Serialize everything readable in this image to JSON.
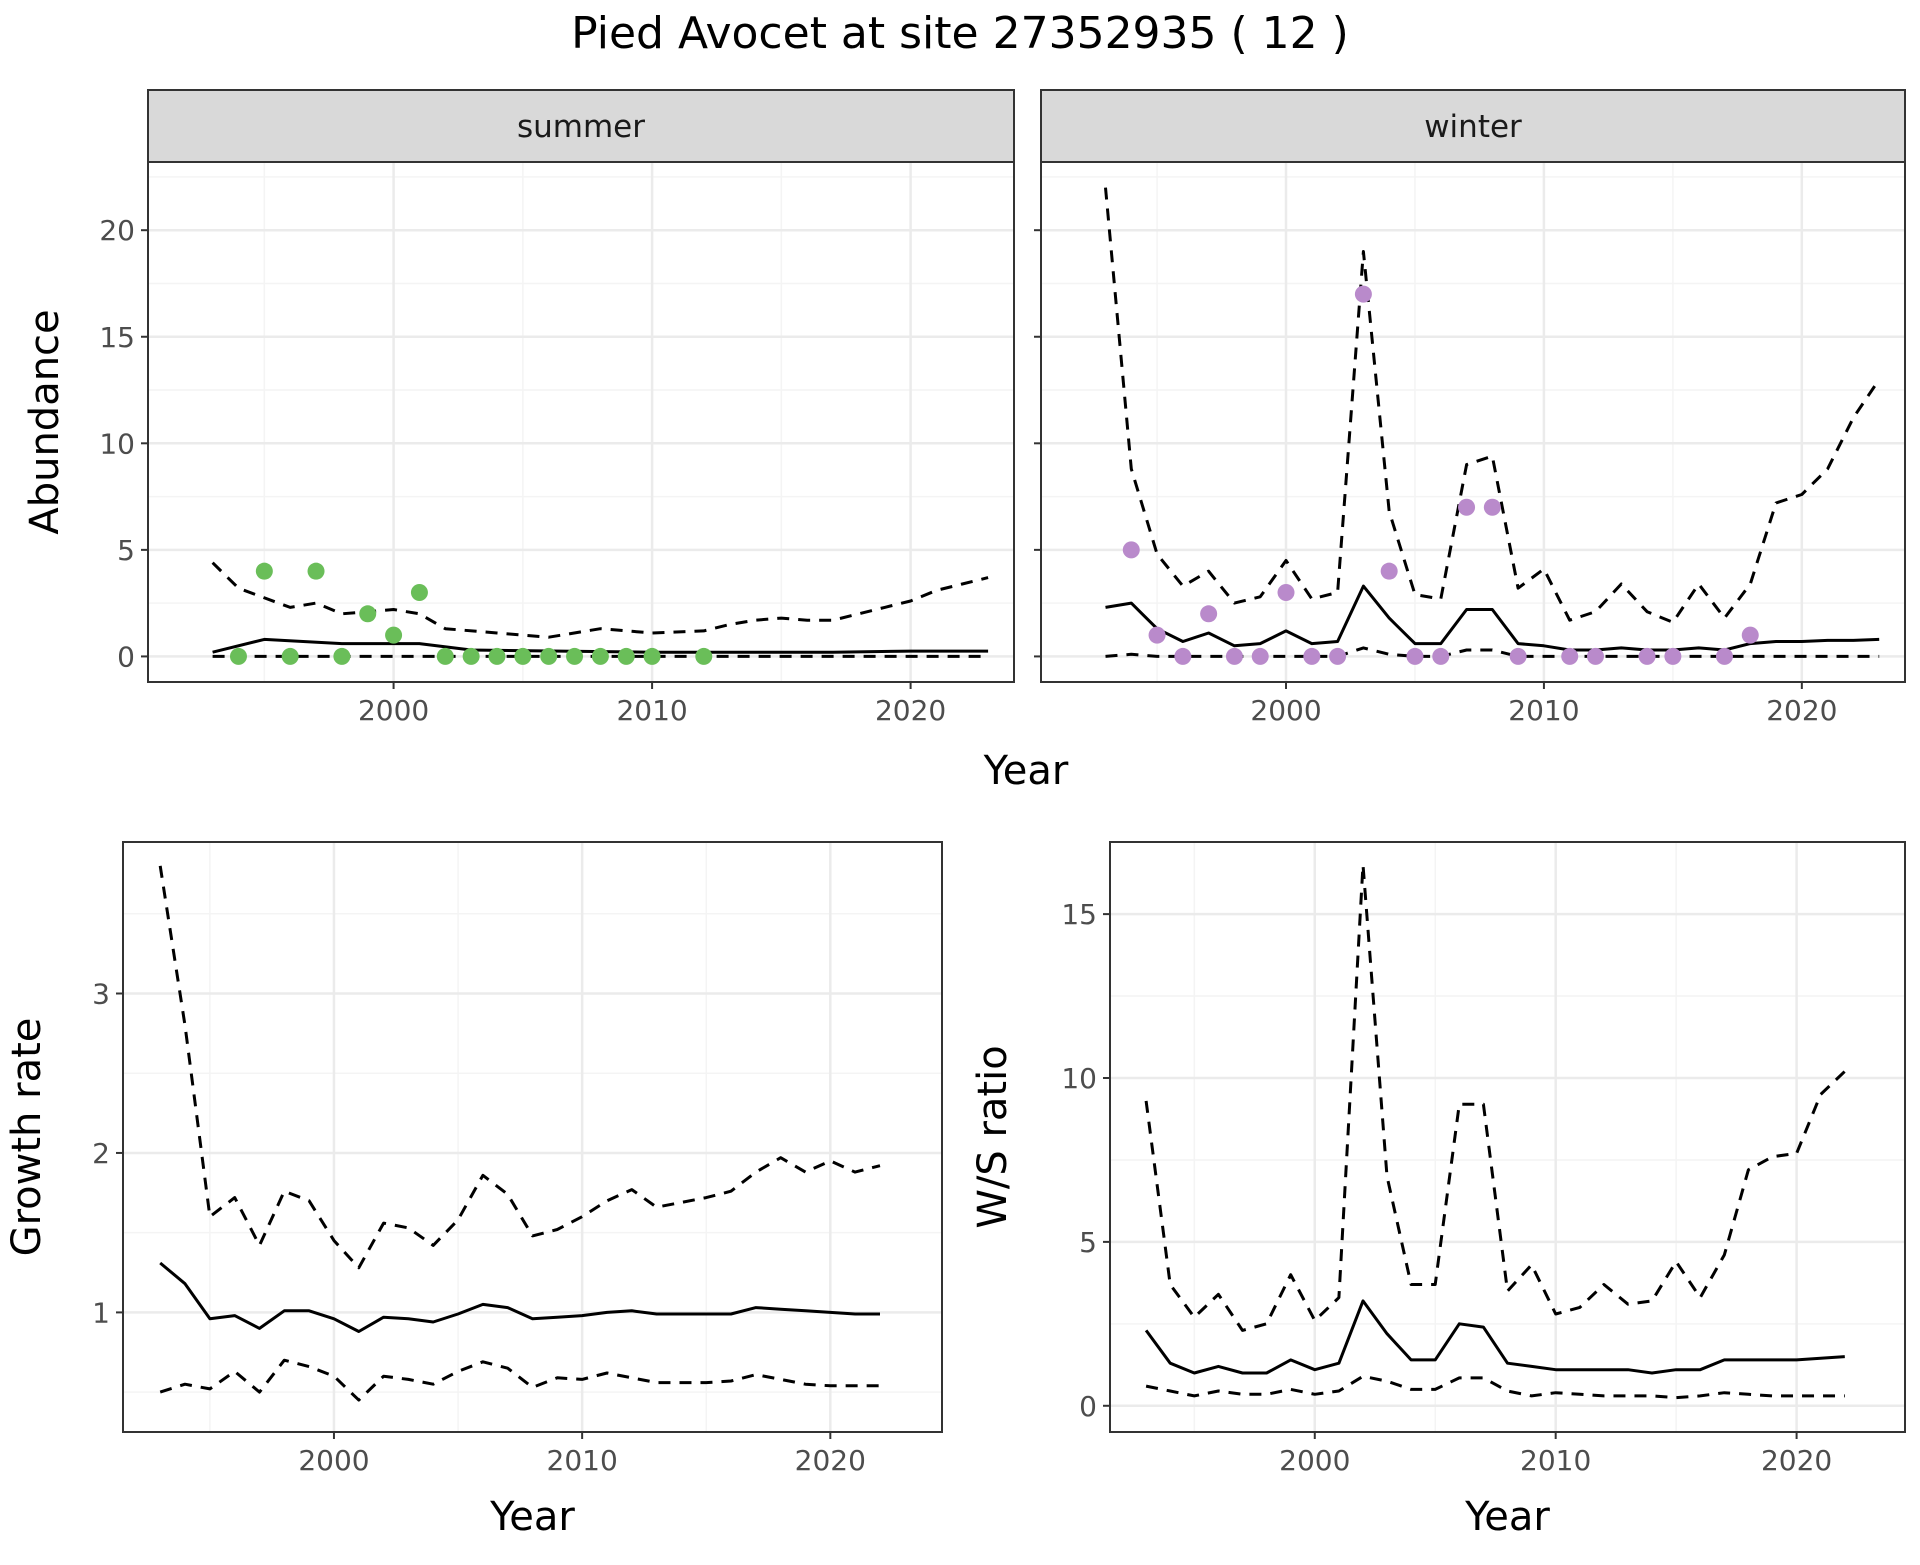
{
  "title": "Pied Avocet at site 27352935 ( 12 )",
  "colors": {
    "summer_points": "#6ABE59",
    "winter_points": "#B98ACB",
    "lines": "#000000",
    "grid_major": "#EBEBEB",
    "grid_minor": "#F4F4F4",
    "strip_fill": "#D9D9D9",
    "panel_border": "#333333"
  },
  "chart_data": [
    {
      "type": "line",
      "panel": "summer",
      "strip_label": "summer",
      "xlabel": "Year",
      "ylabel": "Abundance",
      "xlim": [
        1990.5,
        2024
      ],
      "ylim": [
        -1.2,
        23.2
      ],
      "xticks": [
        2000,
        2010,
        2020
      ],
      "yticks": [
        0,
        5,
        10,
        15,
        20
      ],
      "grid": true,
      "points": {
        "x": [
          1994,
          1995,
          1996,
          1997,
          1998,
          1999,
          2000,
          2001,
          2002,
          2003,
          2004,
          2005,
          2006,
          2007,
          2008,
          2009,
          2010,
          2012
        ],
        "y": [
          0,
          4,
          0,
          4,
          0,
          2,
          1,
          3,
          0,
          0,
          0,
          0,
          0,
          0,
          0,
          0,
          0,
          0
        ]
      },
      "series": [
        {
          "style": "solid",
          "x": [
            1993,
            1995,
            1998,
            2001,
            2003,
            2010,
            2017,
            2020,
            2023
          ],
          "y": [
            0.2,
            0.8,
            0.6,
            0.6,
            0.3,
            0.2,
            0.2,
            0.25,
            0.25
          ]
        },
        {
          "style": "dashed",
          "x": [
            1993,
            1994,
            1996,
            1997,
            1998,
            2000,
            2001,
            2002,
            2004,
            2006,
            2008,
            2010,
            2012,
            2013,
            2014,
            2015,
            2016,
            2017,
            2019,
            2020,
            2021,
            2022,
            2023
          ],
          "y": [
            4.4,
            3.2,
            2.3,
            2.5,
            2.0,
            2.2,
            2.0,
            1.3,
            1.1,
            0.9,
            1.3,
            1.1,
            1.2,
            1.5,
            1.7,
            1.8,
            1.7,
            1.7,
            2.3,
            2.6,
            3.1,
            3.4,
            3.7
          ]
        },
        {
          "style": "dashed",
          "x": [
            1993,
            2023
          ],
          "y": [
            0,
            0
          ]
        }
      ]
    },
    {
      "type": "line",
      "panel": "winter",
      "strip_label": "winter",
      "xlabel": "Year",
      "ylabel": "Abundance",
      "xlim": [
        1990.5,
        2024
      ],
      "ylim": [
        -1.2,
        23.2
      ],
      "xticks": [
        2000,
        2010,
        2020
      ],
      "yticks": [
        0,
        5,
        10,
        15,
        20
      ],
      "grid": true,
      "points": {
        "x": [
          1994,
          1995,
          1996,
          1997,
          1998,
          1999,
          2000,
          2001,
          2002,
          2003,
          2004,
          2005,
          2006,
          2007,
          2008,
          2009,
          2011,
          2012,
          2014,
          2015,
          2017,
          2018
        ],
        "y": [
          5,
          1,
          0,
          2,
          0,
          0,
          3,
          0,
          0,
          17,
          4,
          0,
          0,
          7,
          7,
          0,
          0,
          0,
          0,
          0,
          0,
          1
        ]
      },
      "series": [
        {
          "style": "solid",
          "x": [
            1993,
            1994,
            1995,
            1996,
            1997,
            1998,
            1999,
            2000,
            2001,
            2002,
            2003,
            2004,
            2005,
            2006,
            2007,
            2008,
            2009,
            2010,
            2011,
            2012,
            2013,
            2014,
            2015,
            2016,
            2017,
            2018,
            2019,
            2020,
            2021,
            2022,
            2023
          ],
          "y": [
            2.3,
            2.5,
            1.3,
            0.7,
            1.1,
            0.5,
            0.6,
            1.2,
            0.6,
            0.7,
            3.3,
            1.8,
            0.6,
            0.6,
            2.2,
            2.2,
            0.6,
            0.5,
            0.3,
            0.3,
            0.4,
            0.3,
            0.3,
            0.4,
            0.3,
            0.6,
            0.7,
            0.7,
            0.75,
            0.75,
            0.8
          ]
        },
        {
          "style": "dashed",
          "x": [
            1993,
            1994,
            1995,
            1996,
            1997,
            1998,
            1999,
            2000,
            2001,
            2002,
            2003,
            2004,
            2005,
            2006,
            2007,
            2008,
            2009,
            2010,
            2011,
            2012,
            2013,
            2014,
            2015,
            2016,
            2017,
            2018,
            2019,
            2020,
            2021,
            2022,
            2023
          ],
          "y": [
            22,
            8.8,
            4.8,
            3.3,
            4.0,
            2.5,
            2.8,
            4.5,
            2.7,
            3.0,
            19,
            6.8,
            2.9,
            2.7,
            9.0,
            9.4,
            3.2,
            4.1,
            1.7,
            2.1,
            3.4,
            2.1,
            1.6,
            3.4,
            1.8,
            3.4,
            7.2,
            7.6,
            8.8,
            11.2,
            13
          ]
        },
        {
          "style": "dashed",
          "x": [
            1993,
            1994,
            1995,
            1996,
            1997,
            1998,
            1999,
            2000,
            2001,
            2002,
            2003,
            2004,
            2005,
            2006,
            2007,
            2008,
            2009,
            2010,
            2023
          ],
          "y": [
            0,
            0.1,
            0,
            0,
            0,
            0,
            0,
            0,
            0,
            0,
            0.4,
            0.1,
            0,
            0,
            0.3,
            0.3,
            0,
            0,
            0
          ]
        }
      ]
    },
    {
      "type": "line",
      "panel": "growth",
      "xlabel": "Year",
      "ylabel": "Growth rate",
      "xlim": [
        1991.5,
        2024.5
      ],
      "ylim": [
        0.25,
        3.95
      ],
      "xticks": [
        2000,
        2010,
        2020
      ],
      "yticks": [
        1,
        2,
        3
      ],
      "grid": true,
      "series": [
        {
          "style": "solid",
          "x": [
            1993,
            1994,
            1995,
            1996,
            1997,
            1998,
            1999,
            2000,
            2001,
            2002,
            2003,
            2004,
            2005,
            2006,
            2007,
            2008,
            2009,
            2010,
            2011,
            2012,
            2013,
            2014,
            2015,
            2016,
            2017,
            2018,
            2019,
            2020,
            2021,
            2022
          ],
          "y": [
            1.31,
            1.18,
            0.96,
            0.98,
            0.9,
            1.01,
            1.01,
            0.96,
            0.88,
            0.97,
            0.96,
            0.94,
            0.99,
            1.05,
            1.03,
            0.96,
            0.97,
            0.98,
            1.0,
            1.01,
            0.99,
            0.99,
            0.99,
            0.99,
            1.03,
            1.02,
            1.01,
            1.0,
            0.99,
            0.99
          ]
        },
        {
          "style": "dashed",
          "x": [
            1993,
            1994,
            1995,
            1996,
            1997,
            1998,
            1999,
            2000,
            2001,
            2002,
            2003,
            2004,
            2005,
            2006,
            2007,
            2008,
            2009,
            2010,
            2011,
            2012,
            2013,
            2014,
            2015,
            2016,
            2017,
            2018,
            2019,
            2020,
            2021,
            2022
          ],
          "y": [
            3.8,
            2.8,
            1.6,
            1.72,
            1.42,
            1.76,
            1.7,
            1.45,
            1.28,
            1.56,
            1.53,
            1.42,
            1.58,
            1.86,
            1.74,
            1.48,
            1.52,
            1.6,
            1.7,
            1.77,
            1.66,
            1.69,
            1.72,
            1.76,
            1.88,
            1.97,
            1.88,
            1.95,
            1.88,
            1.92
          ]
        },
        {
          "style": "dashed",
          "x": [
            1993,
            1994,
            1995,
            1996,
            1997,
            1998,
            1999,
            2000,
            2001,
            2002,
            2003,
            2004,
            2005,
            2006,
            2007,
            2008,
            2009,
            2010,
            2011,
            2012,
            2013,
            2014,
            2015,
            2016,
            2017,
            2018,
            2019,
            2020,
            2021,
            2022
          ],
          "y": [
            0.5,
            0.55,
            0.52,
            0.63,
            0.5,
            0.7,
            0.66,
            0.6,
            0.45,
            0.6,
            0.58,
            0.55,
            0.63,
            0.69,
            0.65,
            0.53,
            0.59,
            0.58,
            0.62,
            0.59,
            0.56,
            0.56,
            0.56,
            0.57,
            0.61,
            0.58,
            0.55,
            0.54,
            0.54,
            0.54
          ]
        }
      ]
    },
    {
      "type": "line",
      "panel": "ratio",
      "xlabel": "Year",
      "ylabel": "W/S ratio",
      "xlim": [
        1991.5,
        2024.5
      ],
      "ylim": [
        -0.8,
        17.2
      ],
      "xticks": [
        2000,
        2010,
        2020
      ],
      "yticks": [
        0,
        5,
        10,
        15
      ],
      "grid": true,
      "series": [
        {
          "style": "solid",
          "x": [
            1993,
            1994,
            1995,
            1996,
            1997,
            1998,
            1999,
            2000,
            2001,
            2002,
            2003,
            2004,
            2005,
            2006,
            2007,
            2008,
            2009,
            2010,
            2011,
            2012,
            2013,
            2014,
            2015,
            2016,
            2017,
            2018,
            2019,
            2020,
            2021,
            2022
          ],
          "y": [
            2.3,
            1.3,
            1.0,
            1.2,
            1.0,
            1.0,
            1.4,
            1.1,
            1.3,
            3.2,
            2.2,
            1.4,
            1.4,
            2.5,
            2.4,
            1.3,
            1.2,
            1.1,
            1.1,
            1.1,
            1.1,
            1.0,
            1.1,
            1.1,
            1.4,
            1.4,
            1.4,
            1.4,
            1.45,
            1.5
          ]
        },
        {
          "style": "dashed",
          "x": [
            1993,
            1994,
            1995,
            1996,
            1997,
            1998,
            1999,
            2000,
            2001,
            2002,
            2003,
            2004,
            2005,
            2006,
            2007,
            2008,
            2009,
            2010,
            2011,
            2012,
            2013,
            2014,
            2015,
            2016,
            2017,
            2018,
            2019,
            2020,
            2021,
            2022
          ],
          "y": [
            9.3,
            3.7,
            2.7,
            3.4,
            2.3,
            2.5,
            4.0,
            2.6,
            3.3,
            16.5,
            7.0,
            3.7,
            3.7,
            9.2,
            9.2,
            3.5,
            4.3,
            2.8,
            3.0,
            3.7,
            3.1,
            3.2,
            4.4,
            3.3,
            4.6,
            7.2,
            7.6,
            7.7,
            9.5,
            10.2
          ]
        },
        {
          "style": "dashed",
          "x": [
            1993,
            1994,
            1995,
            1996,
            1997,
            1998,
            1999,
            2000,
            2001,
            2002,
            2003,
            2004,
            2005,
            2006,
            2007,
            2008,
            2009,
            2010,
            2011,
            2012,
            2013,
            2014,
            2015,
            2016,
            2017,
            2018,
            2019,
            2020,
            2021,
            2022
          ],
          "y": [
            0.6,
            0.45,
            0.3,
            0.45,
            0.35,
            0.35,
            0.5,
            0.35,
            0.45,
            0.9,
            0.75,
            0.5,
            0.5,
            0.85,
            0.85,
            0.45,
            0.3,
            0.4,
            0.35,
            0.3,
            0.3,
            0.3,
            0.25,
            0.3,
            0.4,
            0.35,
            0.3,
            0.3,
            0.3,
            0.3
          ]
        }
      ]
    }
  ]
}
